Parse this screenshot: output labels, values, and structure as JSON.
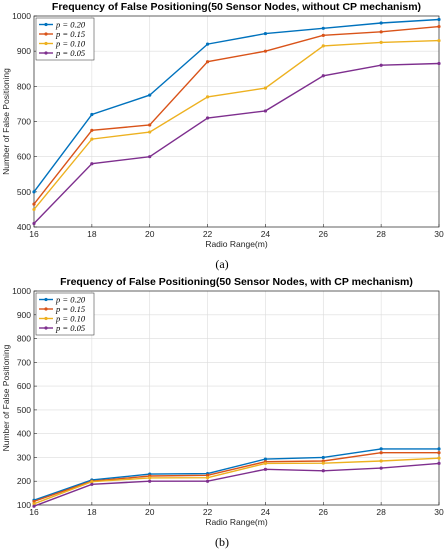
{
  "colors": {
    "p020": "#0072BD",
    "p015": "#D95319",
    "p010": "#EDB120",
    "p005": "#7E2F8E"
  },
  "chart_data": [
    {
      "type": "line",
      "panel_label": "(a)",
      "title": "Frequency of False Positioning(50 Sensor Nodes, without CP mechanism)",
      "xlabel": "Radio Range(m)",
      "ylabel": "Number of False Positioning",
      "x": [
        16,
        18,
        20,
        22,
        24,
        26,
        28,
        30
      ],
      "xlim": [
        16,
        30
      ],
      "ylim": [
        400,
        1000
      ],
      "xticks": [
        "16",
        "18",
        "20",
        "22",
        "24",
        "26",
        "28",
        "30"
      ],
      "yticks": [
        "400",
        "500",
        "600",
        "700",
        "800",
        "900",
        "1000"
      ],
      "grid": true,
      "legend_position": "top-left",
      "series": [
        {
          "name": "p = 0.20",
          "values": [
            500,
            720,
            775,
            920,
            950,
            965,
            980,
            990
          ]
        },
        {
          "name": "p = 0.15",
          "values": [
            465,
            675,
            690,
            870,
            900,
            945,
            955,
            970
          ]
        },
        {
          "name": "p = 0.10",
          "values": [
            450,
            650,
            670,
            770,
            795,
            915,
            925,
            930
          ]
        },
        {
          "name": "p = 0.05",
          "values": [
            410,
            580,
            600,
            710,
            730,
            830,
            860,
            865
          ]
        }
      ]
    },
    {
      "type": "line",
      "panel_label": "(b)",
      "title": "Frequency of False Positioning(50 Sensor Nodes, with CP mechanism)",
      "xlabel": "Radio Range(m)",
      "ylabel": "Number of False Positioning",
      "x": [
        16,
        18,
        20,
        22,
        24,
        26,
        28,
        30
      ],
      "xlim": [
        16,
        30
      ],
      "ylim": [
        100,
        1000
      ],
      "xticks": [
        "16",
        "18",
        "20",
        "22",
        "24",
        "26",
        "28",
        "30"
      ],
      "yticks": [
        "100",
        "200",
        "300",
        "400",
        "500",
        "600",
        "700",
        "800",
        "900",
        "1000"
      ],
      "grid": true,
      "legend_position": "top-left",
      "series": [
        {
          "name": "p = 0.20",
          "values": [
            120,
            205,
            230,
            232,
            293,
            300,
            336,
            336
          ]
        },
        {
          "name": "p = 0.15",
          "values": [
            115,
            200,
            222,
            225,
            282,
            285,
            320,
            320
          ]
        },
        {
          "name": "p = 0.10",
          "values": [
            105,
            198,
            214,
            215,
            275,
            276,
            285,
            297
          ]
        },
        {
          "name": "p = 0.05",
          "values": [
            95,
            187,
            200,
            200,
            250,
            244,
            255,
            275
          ]
        }
      ]
    }
  ]
}
